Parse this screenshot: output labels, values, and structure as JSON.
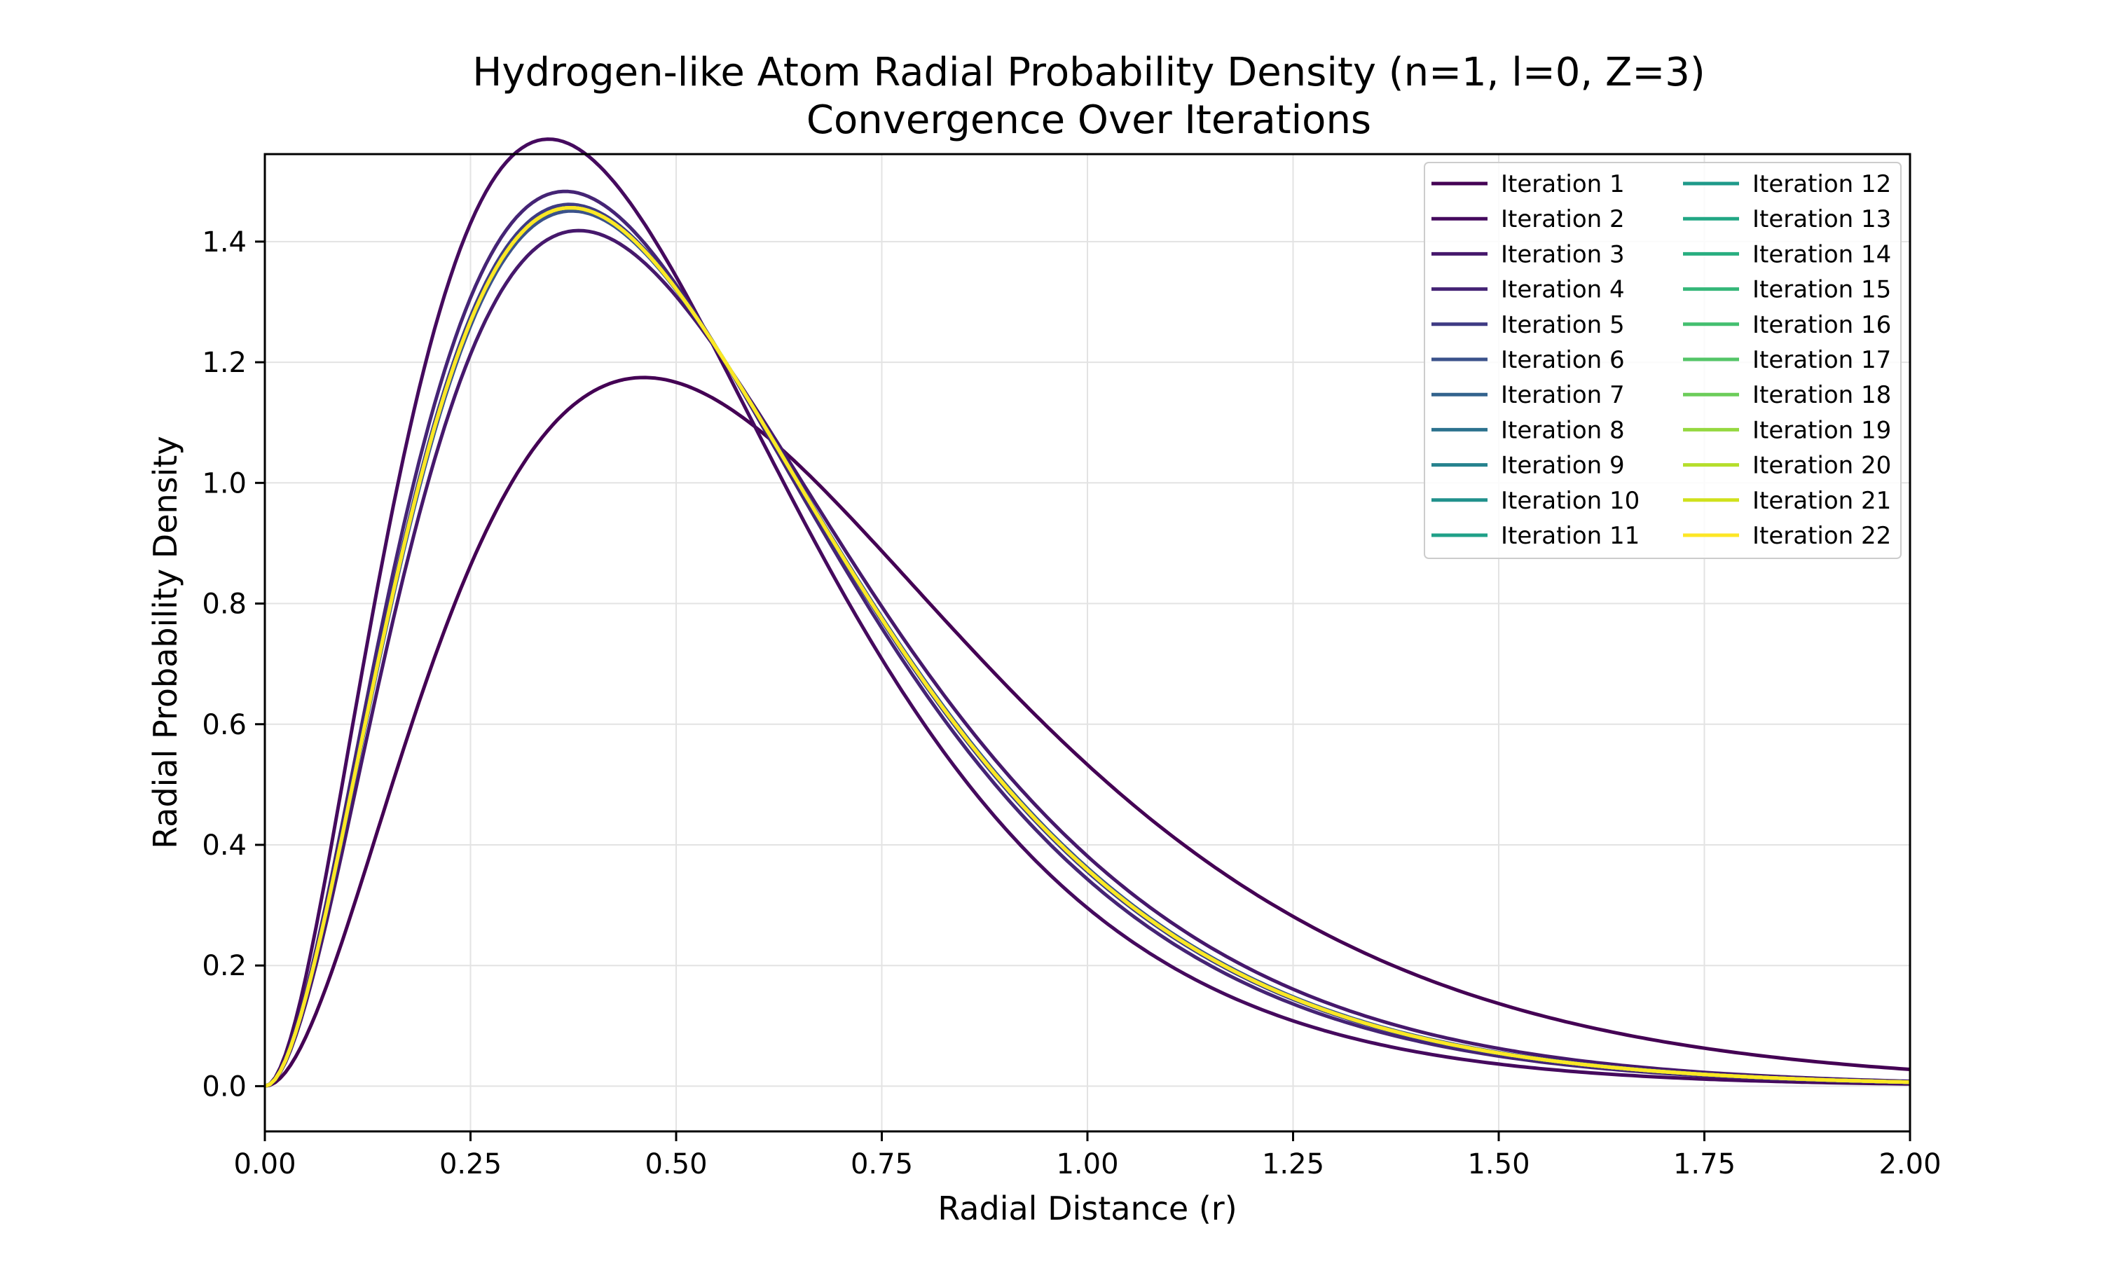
{
  "chart_data": {
    "type": "line",
    "title_lines": [
      "Hydrogen-like Atom Radial Probability Density (n=1, l=0, Z=3)",
      "Convergence Over Iterations"
    ],
    "xlabel": "Radial Distance (r)",
    "ylabel": "Radial Probability Density",
    "xlim": [
      0,
      2
    ],
    "ylim": [
      -0.075,
      1.545
    ],
    "x_ticks": [
      0,
      0.25,
      0.5,
      0.75,
      1.0,
      1.25,
      1.5,
      1.75,
      2.0
    ],
    "x_tick_labels": [
      "0.00",
      "0.25",
      "0.50",
      "0.75",
      "1.00",
      "1.25",
      "1.50",
      "1.75",
      "2.00"
    ],
    "y_ticks": [
      0,
      0.2,
      0.4,
      0.6,
      0.8,
      1.0,
      1.2,
      1.4
    ],
    "y_tick_labels": [
      "0.0",
      "0.2",
      "0.4",
      "0.6",
      "0.8",
      "1.0",
      "1.2",
      "1.4"
    ],
    "grid": true,
    "legend_position": "top-right",
    "legend_columns": 2,
    "curve_model": "P(r) = 4 z^3 r^2 exp(-2 z r)",
    "series": [
      {
        "name": "Iteration 1",
        "color": "#440154",
        "z": 2.17,
        "x_range": [
          0,
          2
        ]
      },
      {
        "name": "Iteration 2",
        "color": "#450a5e",
        "z": 2.9,
        "x_range": [
          0,
          2
        ]
      },
      {
        "name": "Iteration 3",
        "color": "#46186c",
        "z": 2.62,
        "x_range": [
          0,
          2
        ]
      },
      {
        "name": "Iteration 4",
        "color": "#452475",
        "z": 2.74,
        "x_range": [
          0,
          2
        ]
      },
      {
        "name": "Iteration 5",
        "color": "#3f3b84",
        "z": 2.7,
        "x_range": [
          0,
          2
        ]
      },
      {
        "name": "Iteration 6",
        "color": "#3b528b",
        "z": 2.68,
        "x_range": [
          0,
          2
        ]
      },
      {
        "name": "Iteration 7",
        "color": "#33638d",
        "z": 2.69,
        "x_range": [
          0,
          2
        ]
      },
      {
        "name": "Iteration 8",
        "color": "#2c728e",
        "z": 2.69,
        "x_range": [
          0,
          2
        ]
      },
      {
        "name": "Iteration 9",
        "color": "#26828e",
        "z": 2.69,
        "x_range": [
          0,
          2
        ]
      },
      {
        "name": "Iteration 10",
        "color": "#21918c",
        "z": 2.69,
        "x_range": [
          0,
          2
        ]
      },
      {
        "name": "Iteration 11",
        "color": "#1fa088",
        "z": 2.69,
        "x_range": [
          0,
          2
        ]
      },
      {
        "name": "Iteration 12",
        "color": "#1f9a8a",
        "z": 2.69,
        "x_range": [
          0,
          2
        ]
      },
      {
        "name": "Iteration 13",
        "color": "#22a785",
        "z": 2.69,
        "x_range": [
          0,
          2
        ]
      },
      {
        "name": "Iteration 14",
        "color": "#28ae80",
        "z": 2.69,
        "x_range": [
          0,
          2
        ]
      },
      {
        "name": "Iteration 15",
        "color": "#35b779",
        "z": 2.69,
        "x_range": [
          0,
          2
        ]
      },
      {
        "name": "Iteration 16",
        "color": "#44bf70",
        "z": 2.69,
        "x_range": [
          0,
          2
        ]
      },
      {
        "name": "Iteration 17",
        "color": "#54c568",
        "z": 2.69,
        "x_range": [
          0,
          2
        ]
      },
      {
        "name": "Iteration 18",
        "color": "#6ccd5a",
        "z": 2.69,
        "x_range": [
          0,
          2
        ]
      },
      {
        "name": "Iteration 19",
        "color": "#95d840",
        "z": 2.69,
        "x_range": [
          0,
          2
        ]
      },
      {
        "name": "Iteration 20",
        "color": "#b5de2b",
        "z": 2.69,
        "x_range": [
          0,
          2
        ]
      },
      {
        "name": "Iteration 21",
        "color": "#d0e11c",
        "z": 2.69,
        "x_range": [
          0,
          2
        ]
      },
      {
        "name": "Iteration 22",
        "color": "#fde725",
        "z": 2.69,
        "x_range": [
          0,
          2
        ]
      }
    ]
  }
}
